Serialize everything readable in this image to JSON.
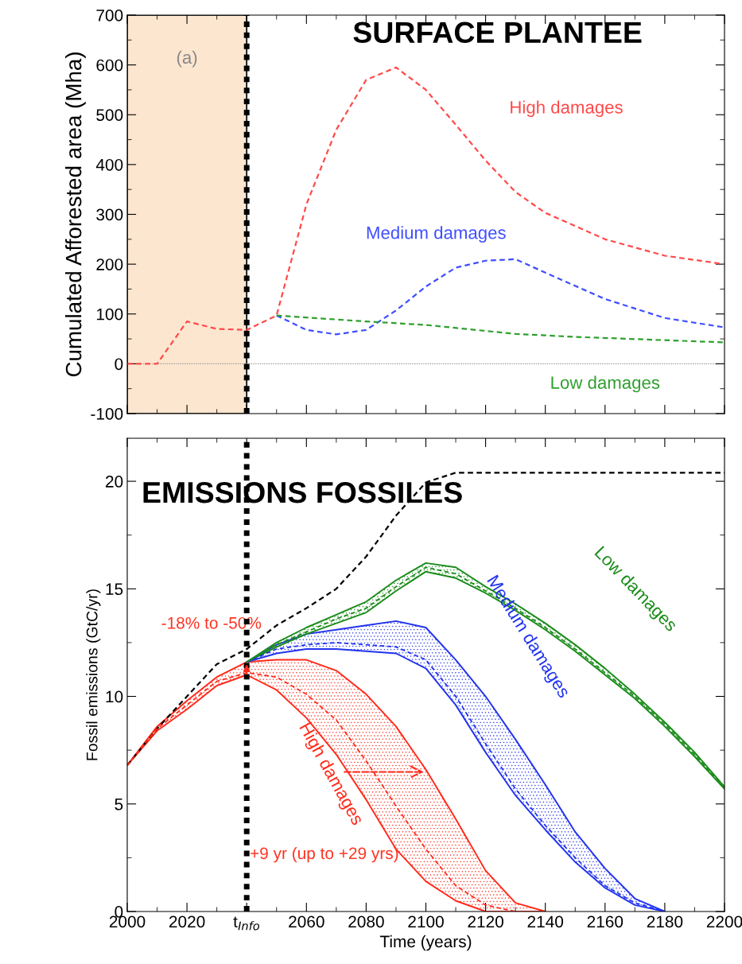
{
  "chart_data": [
    {
      "type": "line",
      "title": "SURFACE PLANTEE",
      "ylabel": "Cumulated Afforested area (Mha)",
      "xlim": [
        2000,
        2200
      ],
      "xticks": [
        2000,
        2020,
        2040,
        2060,
        2080,
        2100,
        2120,
        2140,
        2160,
        2180,
        2200
      ],
      "ylim": [
        -100,
        700
      ],
      "yticks": [
        -100,
        0,
        100,
        200,
        300,
        400,
        500,
        600,
        700
      ],
      "tick_labels": "y",
      "grid": false,
      "legend": false,
      "line_style": "dashed",
      "marker": "none",
      "annotations": [
        "(a)"
      ],
      "bands": [
        {
          "axis": "x",
          "from": 2000,
          "to": 2040,
          "color": "#fde6cf"
        }
      ],
      "ref_lines": [
        {
          "axis": "y",
          "value": 0,
          "color": "#999999",
          "line_style": "dotted"
        },
        {
          "axis": "x",
          "value": 2040,
          "color": "#000000",
          "line_style": "dotted"
        }
      ],
      "series": [
        {
          "name": "High damages",
          "color": "#ff4a4a",
          "x": [
            2000,
            2010,
            2020,
            2030,
            2040,
            2050,
            2060,
            2070,
            2080,
            2090,
            2100,
            2110,
            2120,
            2130,
            2140,
            2160,
            2180,
            2200
          ],
          "values": [
            0,
            0,
            85,
            70,
            68,
            97,
            320,
            470,
            570,
            595,
            550,
            480,
            408,
            345,
            303,
            250,
            217,
            200
          ]
        },
        {
          "name": "Medium damages",
          "color": "#3f4fff",
          "x": [
            2050,
            2060,
            2070,
            2080,
            2090,
            2100,
            2110,
            2120,
            2130,
            2140,
            2160,
            2180,
            2200
          ],
          "values": [
            97,
            68,
            59,
            68,
            107,
            155,
            193,
            207,
            210,
            183,
            130,
            92,
            73
          ]
        },
        {
          "name": "Low damages",
          "color": "#2ea02e",
          "x": [
            2050,
            2080,
            2100,
            2130,
            2150,
            2200
          ],
          "values": [
            97,
            85,
            78,
            60,
            54,
            43
          ]
        }
      ]
    },
    {
      "type": "line",
      "title": "EMISSIONS FOSSILES",
      "xlabel": "Time (years)",
      "ylabel": "Fossil emissions (GtC/yr)",
      "xlim": [
        2000,
        2200
      ],
      "xticks": [
        2000,
        2020,
        {
          "value": 2040,
          "label": "t$_{Info}$"
        },
        2060,
        2080,
        2100,
        2120,
        2140,
        2160,
        2180,
        2200
      ],
      "ylim": [
        0,
        22
      ],
      "yticks": [
        0,
        5,
        10,
        15,
        20
      ],
      "grid": false,
      "legend": false,
      "marker": "none",
      "annotations": [
        {
          "text": "-18% to -50%",
          "x": 2040,
          "y": 11.6
        },
        "+9 yr (up to +29 yrs)"
      ],
      "ref_lines": [
        {
          "axis": "x",
          "value": 2040,
          "color": "#000000",
          "line_style": "dotted"
        }
      ],
      "series": [
        {
          "color": "#000000",
          "line_style": "dashed",
          "x": [
            2000,
            2010,
            2020,
            2030,
            2040,
            2050,
            2060,
            2070,
            2080,
            2090,
            2100,
            2110,
            2200
          ],
          "values": [
            6.8,
            8.5,
            10.0,
            11.5,
            12.2,
            13.3,
            14.1,
            15.0,
            16.5,
            18.4,
            19.95,
            20.4,
            20.4
          ]
        },
        {
          "name": "High damages",
          "color": "#ff2a1a",
          "line_style": "dashed",
          "x": [
            2000,
            2010,
            2020,
            2030,
            2040,
            2050,
            2060,
            2070,
            2080,
            2090,
            2100,
            2110,
            2120,
            2130,
            2140
          ],
          "values": [
            6.8,
            8.5,
            9.6,
            10.7,
            11.1,
            10.9,
            10.1,
            8.9,
            7.0,
            4.9,
            2.9,
            1.2,
            0.3,
            0,
            0
          ],
          "lower": [
            6.8,
            8.4,
            9.4,
            10.5,
            11.0,
            10.3,
            9.0,
            7.3,
            5.2,
            2.9,
            1.4,
            0.5,
            0,
            0,
            0
          ],
          "upper": [
            6.8,
            8.6,
            9.8,
            10.9,
            11.6,
            11.7,
            11.7,
            11.2,
            10.1,
            8.6,
            6.6,
            4.3,
            1.9,
            0.4,
            0
          ]
        },
        {
          "name": "Medium damages",
          "color": "#2233ee",
          "line_style": "dashed",
          "x": [
            2040,
            2050,
            2060,
            2070,
            2080,
            2090,
            2100,
            2110,
            2120,
            2130,
            2140,
            2150,
            2160,
            2170,
            2180
          ],
          "values": [
            11.6,
            12.2,
            12.4,
            12.5,
            12.4,
            12.3,
            11.7,
            10.0,
            7.8,
            5.7,
            4.0,
            2.5,
            1.2,
            0.4,
            0
          ],
          "lower": [
            11.6,
            12.0,
            12.2,
            12.2,
            12.1,
            12.0,
            11.3,
            9.6,
            7.4,
            5.4,
            3.8,
            2.3,
            1.1,
            0.3,
            0
          ],
          "upper": [
            11.6,
            12.4,
            12.9,
            13.1,
            13.3,
            13.5,
            13.2,
            11.7,
            10.0,
            8.0,
            5.9,
            3.7,
            2.0,
            0.6,
            0
          ]
        },
        {
          "name": "Low damages",
          "color": "#1a8c1a",
          "line_style": "dashed",
          "x": [
            2040,
            2050,
            2060,
            2070,
            2080,
            2090,
            2100,
            2110,
            2120,
            2130,
            2140,
            2150,
            2160,
            2170,
            2180,
            2190,
            2200
          ],
          "values": [
            11.6,
            12.4,
            13.0,
            13.6,
            14.1,
            15.1,
            16.0,
            15.7,
            14.9,
            14.1,
            13.2,
            12.2,
            11.1,
            10.0,
            8.7,
            7.3,
            5.75
          ],
          "lower": [
            11.6,
            12.3,
            12.9,
            13.4,
            13.9,
            14.9,
            15.8,
            15.5,
            14.8,
            14.0,
            13.1,
            12.1,
            11.0,
            9.9,
            8.6,
            7.2,
            5.7
          ],
          "upper": [
            11.6,
            12.5,
            13.2,
            13.8,
            14.4,
            15.4,
            16.2,
            16.0,
            15.1,
            14.3,
            13.4,
            12.4,
            11.3,
            10.1,
            8.8,
            7.4,
            5.8
          ]
        }
      ]
    }
  ]
}
